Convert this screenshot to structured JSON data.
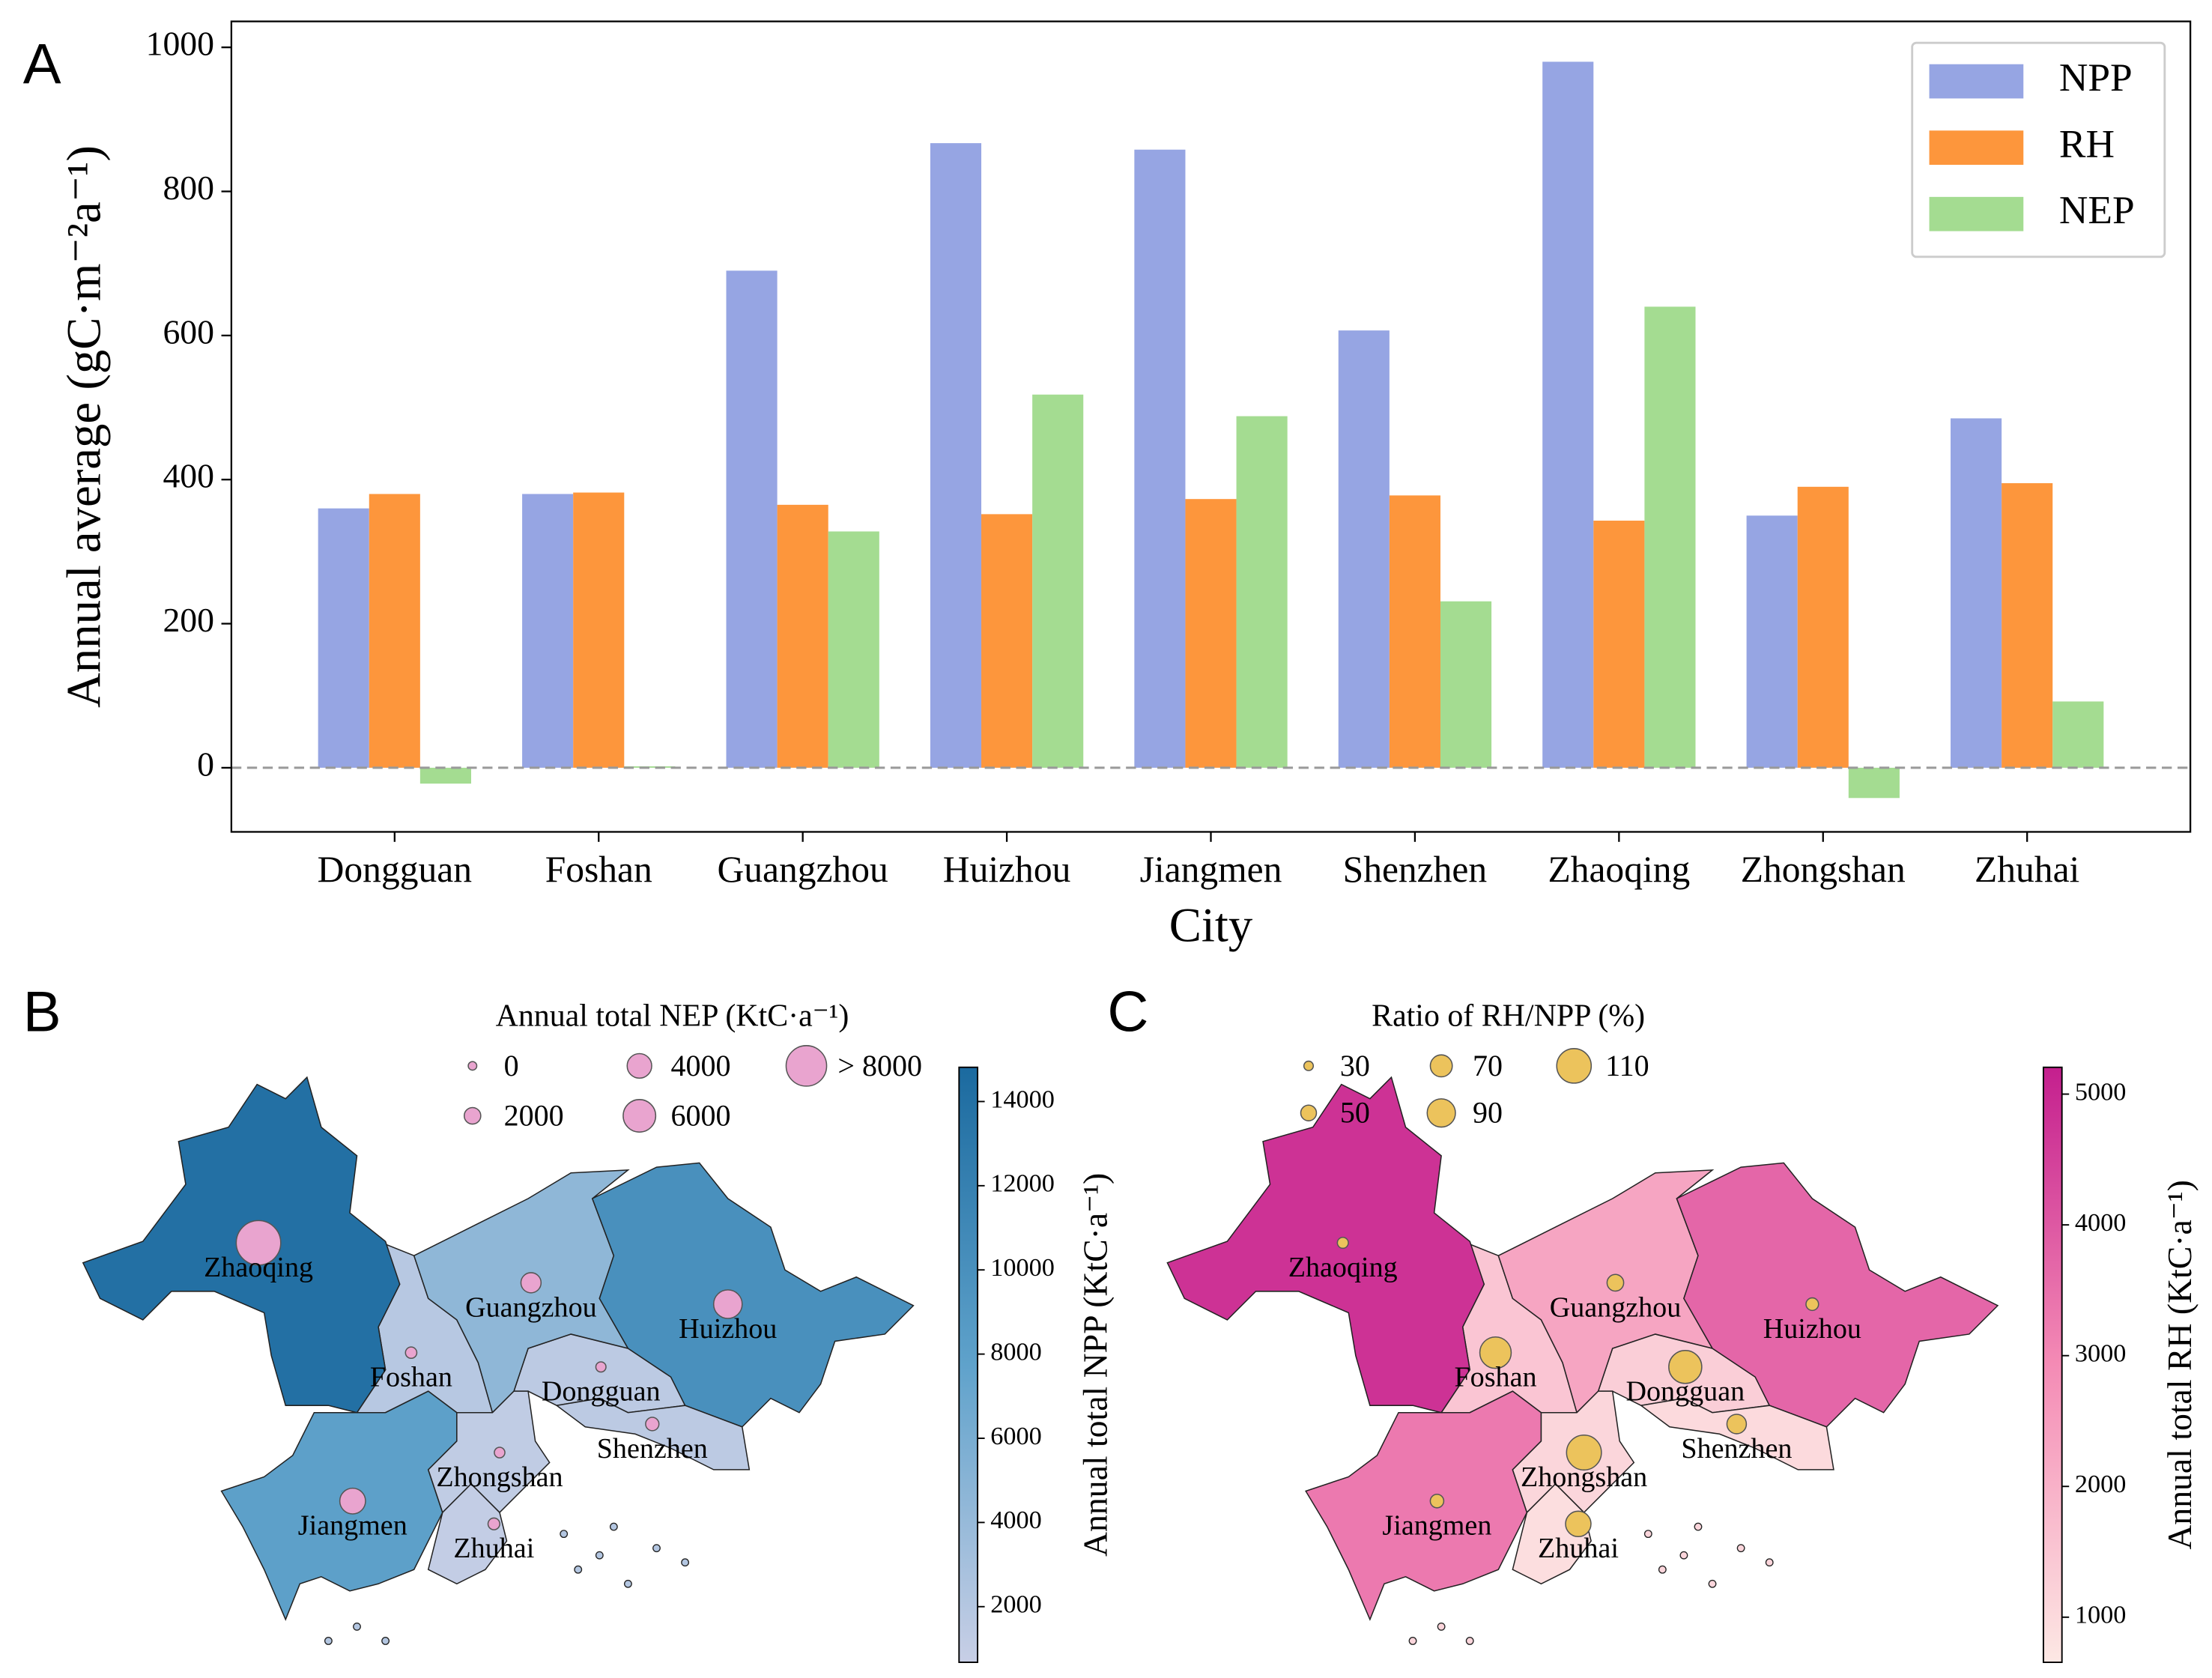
{
  "chart_data": [
    {
      "type": "bar",
      "panel_label": "A",
      "ylabel": "Annual average (gC·m⁻²a⁻¹)",
      "xlabel": "City",
      "categories": [
        "Dongguan",
        "Foshan",
        "Guangzhou",
        "Huizhou",
        "Jiangmen",
        "Shenzhen",
        "Zhaoqing",
        "Zhongshan",
        "Zhuhai"
      ],
      "series": [
        {
          "name": "NPP",
          "color": "#96a5e3",
          "values": [
            360,
            380,
            690,
            867,
            858,
            607,
            980,
            350,
            485
          ]
        },
        {
          "name": "RH",
          "color": "#fd963c",
          "values": [
            380,
            382,
            365,
            352,
            373,
            378,
            343,
            390,
            395
          ]
        },
        {
          "name": "NEP",
          "color": "#a4dc91",
          "values": [
            -22,
            2,
            328,
            518,
            488,
            231,
            640,
            -42,
            92
          ]
        }
      ],
      "ylim": [
        -89,
        1036
      ],
      "yticks": [
        0,
        200,
        400,
        600,
        800,
        1000
      ],
      "zero_line": true,
      "legend": "upper right"
    },
    {
      "type": "bubble_map",
      "panel_label": "B",
      "categories": [
        "Dongguan",
        "Foshan",
        "Guangzhou",
        "Huizhou",
        "Jiangmen",
        "Shenzhen",
        "Zhaoqing",
        "Zhongshan",
        "Zhuhai"
      ],
      "color_values": [
        1500,
        1800,
        4500,
        10000,
        8000,
        1500,
        14000,
        1200,
        1000
      ],
      "size_values": [
        400,
        700,
        2900,
        5000,
        4300,
        1200,
        9000,
        500,
        800
      ],
      "size_legend_title": "Annual total NEP (KtC·a⁻¹)",
      "size_legend": [
        0,
        2000,
        4000,
        6000,
        {
          "value": 8000,
          "label": "> 8000"
        }
      ],
      "colorbar_label": "Annual total NPP (KtC·a⁻¹)",
      "clim": [
        678,
        14813
      ],
      "cticks": [
        2000,
        4000,
        6000,
        8000,
        10000,
        12000,
        14000
      ],
      "colormap": [
        "#c8cfe6",
        "#5fa2cb",
        "#1b6a9f"
      ],
      "bubble_color": "#e9a4cf"
    },
    {
      "type": "bubble_map",
      "panel_label": "C",
      "categories": [
        "Dongguan",
        "Foshan",
        "Guangzhou",
        "Huizhou",
        "Jiangmen",
        "Shenzhen",
        "Zhaoqing",
        "Zhongshan",
        "Zhuhai"
      ],
      "color_values": [
        1300,
        1500,
        2300,
        3700,
        3300,
        1000,
        4800,
        1100,
        900
      ],
      "size_values": [
        105,
        100,
        53,
        40,
        43,
        62,
        35,
        111,
        81
      ],
      "size_legend_title": "Ratio of RH/NPP (%)",
      "size_legend": [
        30,
        50,
        70,
        90,
        110
      ],
      "colorbar_label": "Annual total RH (KtC·a⁻¹)",
      "clim": [
        655,
        5205
      ],
      "cticks": [
        1000,
        2000,
        3000,
        4000,
        5000
      ],
      "colormap": [
        "#fde8e4",
        "#f48bb5",
        "#c41f8e"
      ],
      "bubble_color": "#ecc35c"
    }
  ]
}
